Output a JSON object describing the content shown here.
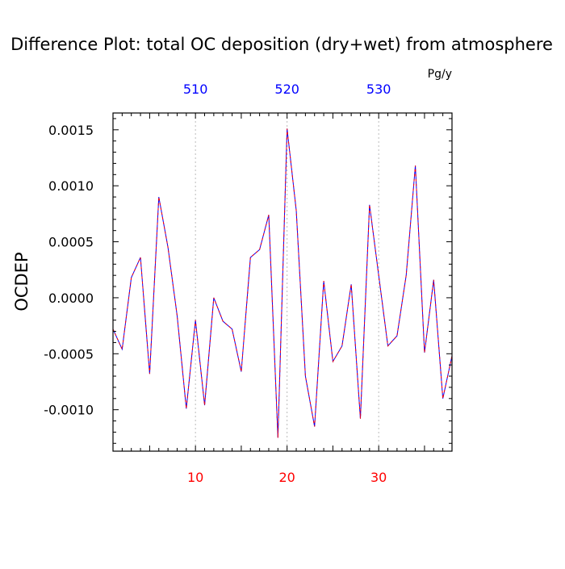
{
  "chart_data": {
    "type": "line",
    "title": "Difference Plot: total OC deposition (dry+wet) from atmosphere",
    "units": "Pg/y",
    "ylabel": "OCDEP",
    "xlabel": "",
    "xlim": [
      1,
      38
    ],
    "ylim": [
      -0.00137,
      0.00165
    ],
    "grid": "vertical dashed lines at labeled x ticks",
    "bottom_axis": {
      "ticks": [
        10,
        20,
        30
      ],
      "tick_labels": [
        "10",
        "20",
        "30"
      ],
      "label_color": "#ff0000"
    },
    "top_axis": {
      "ticks": [
        10,
        20,
        30
      ],
      "tick_labels": [
        "510",
        "520",
        "530"
      ],
      "label_color": "#0000ff"
    },
    "y_axis": {
      "ticks": [
        0.0015,
        0.001,
        0.0005,
        0.0,
        -0.0005,
        -0.001
      ],
      "tick_labels": [
        "0.0015",
        "0.0010",
        "0.0005",
        "0.0000",
        "-0.0005",
        "-0.0010"
      ]
    },
    "series": [
      {
        "color": "#0000ff",
        "color2": "#ff0000",
        "style": "dashed",
        "x": [
          1,
          2,
          3,
          4,
          5,
          6,
          7,
          8,
          9,
          10,
          11,
          12,
          13,
          14,
          15,
          16,
          17,
          18,
          19,
          20,
          21,
          22,
          23,
          24,
          25,
          26,
          27,
          28,
          29,
          30,
          31,
          32,
          33,
          34,
          35,
          36,
          37,
          38
        ],
        "y": [
          -0.00028,
          -0.00046,
          0.00018,
          0.00036,
          -0.00068,
          0.0009,
          0.00045,
          -0.00016,
          -0.00099,
          -0.0002,
          -0.00096,
          0.0,
          -0.00021,
          -0.00028,
          -0.00066,
          0.00036,
          0.00043,
          0.00074,
          -0.00125,
          0.00151,
          0.00078,
          -0.0007,
          -0.00115,
          0.00015,
          -0.00057,
          -0.00043,
          0.00012,
          -0.00108,
          0.00083,
          0.0002,
          -0.00043,
          -0.00034,
          0.0002,
          0.00118,
          -0.00049,
          0.00016,
          -0.0009,
          -0.00052
        ]
      }
    ]
  }
}
